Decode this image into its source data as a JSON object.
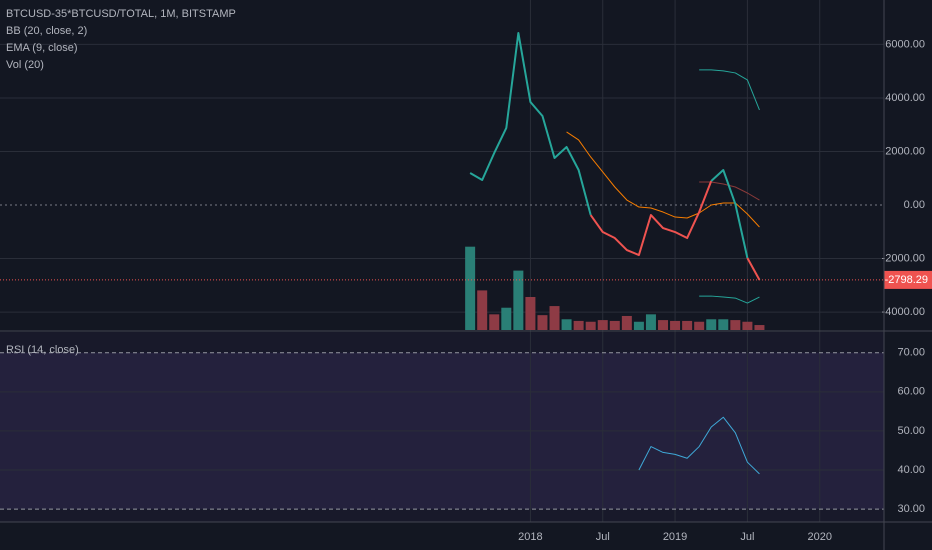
{
  "chart_data": [
    {
      "type": "line",
      "title": "BTCUSD-35*BTCUSD/TOTAL, 1M, BITSTAMP",
      "xlim": [
        "2014-05",
        "2020-06"
      ],
      "xticks": [
        {
          "value": "2018-01",
          "label": "2018"
        },
        {
          "value": "2018-07",
          "label": "Jul"
        },
        {
          "value": "2019-01",
          "label": "2019"
        },
        {
          "value": "2019-07",
          "label": "Jul"
        },
        {
          "value": "2020-01",
          "label": "2020"
        }
      ],
      "ylim": [
        -4670,
        7660
      ],
      "yticks": [
        {
          "value": 6000,
          "label": "6000.00"
        },
        {
          "value": 4000,
          "label": "4000.00"
        },
        {
          "value": 2000,
          "label": "2000.00"
        },
        {
          "value": 0,
          "label": "0.00"
        },
        {
          "value": -2000,
          "label": "-2000.00"
        },
        {
          "value": -4000,
          "label": "-4000.00"
        }
      ],
      "price": {
        "x": [
          "2017-08",
          "2017-09",
          "2017-10",
          "2017-11",
          "2017-12",
          "2018-01",
          "2018-02",
          "2018-03",
          "2018-04",
          "2018-05",
          "2018-06",
          "2018-07",
          "2018-08",
          "2018-09",
          "2018-10",
          "2018-11",
          "2018-12",
          "2019-01",
          "2019-02",
          "2019-03",
          "2019-04",
          "2019-05",
          "2019-06",
          "2019-07",
          "2019-08"
        ],
        "values": [
          1196,
          935,
          1944,
          2878,
          6429,
          3850,
          3327,
          1757,
          2168,
          1308,
          -374,
          -1009,
          -1234,
          -1682,
          -1869,
          -374,
          -860,
          -1009,
          -1234,
          -262,
          897,
          1308,
          37,
          -1981,
          -2798.29
        ],
        "up_color": "#26a69a",
        "down_color": "#ef5350"
      },
      "bb": {
        "name": "BB (20, close, 2)",
        "x": [
          "2019-03",
          "2019-04",
          "2019-05",
          "2019-06",
          "2019-07",
          "2019-08"
        ],
        "upper": [
          5047,
          5047,
          5010,
          4935,
          4673,
          3551
        ],
        "basis": [
          860,
          860,
          785,
          673,
          449,
          187
        ],
        "lower": [
          -3402,
          -3402,
          -3439,
          -3477,
          -3663,
          -3439
        ],
        "color": "#26a69a",
        "basis_color": "#8b3a3a"
      },
      "ema": {
        "name": "EMA (9, close)",
        "color": "#f57c00",
        "x": [
          "2018-04",
          "2018-05",
          "2018-06",
          "2018-07",
          "2018-08",
          "2018-09",
          "2018-10",
          "2018-11",
          "2018-12",
          "2019-01",
          "2019-02",
          "2019-03",
          "2019-04",
          "2019-05",
          "2019-06",
          "2019-07",
          "2019-08"
        ],
        "values": [
          2729,
          2430,
          1794,
          1234,
          673,
          187,
          -75,
          -112,
          -262,
          -449,
          -486,
          -299,
          0,
          75,
          75,
          -336,
          -822
        ]
      },
      "volume": {
        "name": "Vol (20)",
        "ylim": [
          0,
          400
        ],
        "values": [
          101,
          48,
          19,
          27,
          72,
          40,
          18,
          29,
          13,
          11,
          10,
          12,
          11,
          17,
          10,
          19,
          12,
          11,
          11,
          10,
          13,
          13,
          12,
          10,
          6
        ],
        "colors": [
          "#2a7f76",
          "#8e3b45",
          "#8e3b45",
          "#2a7f76",
          "#2a7f76",
          "#8e3b45",
          "#8e3b45",
          "#8e3b45",
          "#2a7f76",
          "#8e3b45",
          "#8e3b45",
          "#8e3b45",
          "#8e3b45",
          "#8e3b45",
          "#2a7f76",
          "#2a7f76",
          "#8e3b45",
          "#8e3b45",
          "#8e3b45",
          "#8e3b45",
          "#2a7f76",
          "#2a7f76",
          "#8e3b45",
          "#8e3b45",
          "#8e3b45"
        ]
      }
    },
    {
      "type": "line",
      "title": "RSI (14, close)",
      "ylim": [
        26.7,
        75.3
      ],
      "yticks": [
        {
          "value": 70,
          "label": "70.00"
        },
        {
          "value": 60,
          "label": "60.00"
        },
        {
          "value": 50,
          "label": "50.00"
        },
        {
          "value": 40,
          "label": "40.00"
        },
        {
          "value": 30,
          "label": "30.00"
        }
      ],
      "band": [
        70,
        30
      ],
      "band_color": "#7e57c2",
      "series": [
        {
          "color": "#3fa9d8",
          "x": [
            "2018-10",
            "2018-11",
            "2018-12",
            "2019-01",
            "2019-02",
            "2019-03",
            "2019-04",
            "2019-05",
            "2019-06",
            "2019-07",
            "2019-08"
          ],
          "values": [
            40,
            46,
            44.5,
            44,
            43,
            46,
            51,
            53.5,
            49.5,
            42,
            39
          ]
        }
      ]
    }
  ]
}
